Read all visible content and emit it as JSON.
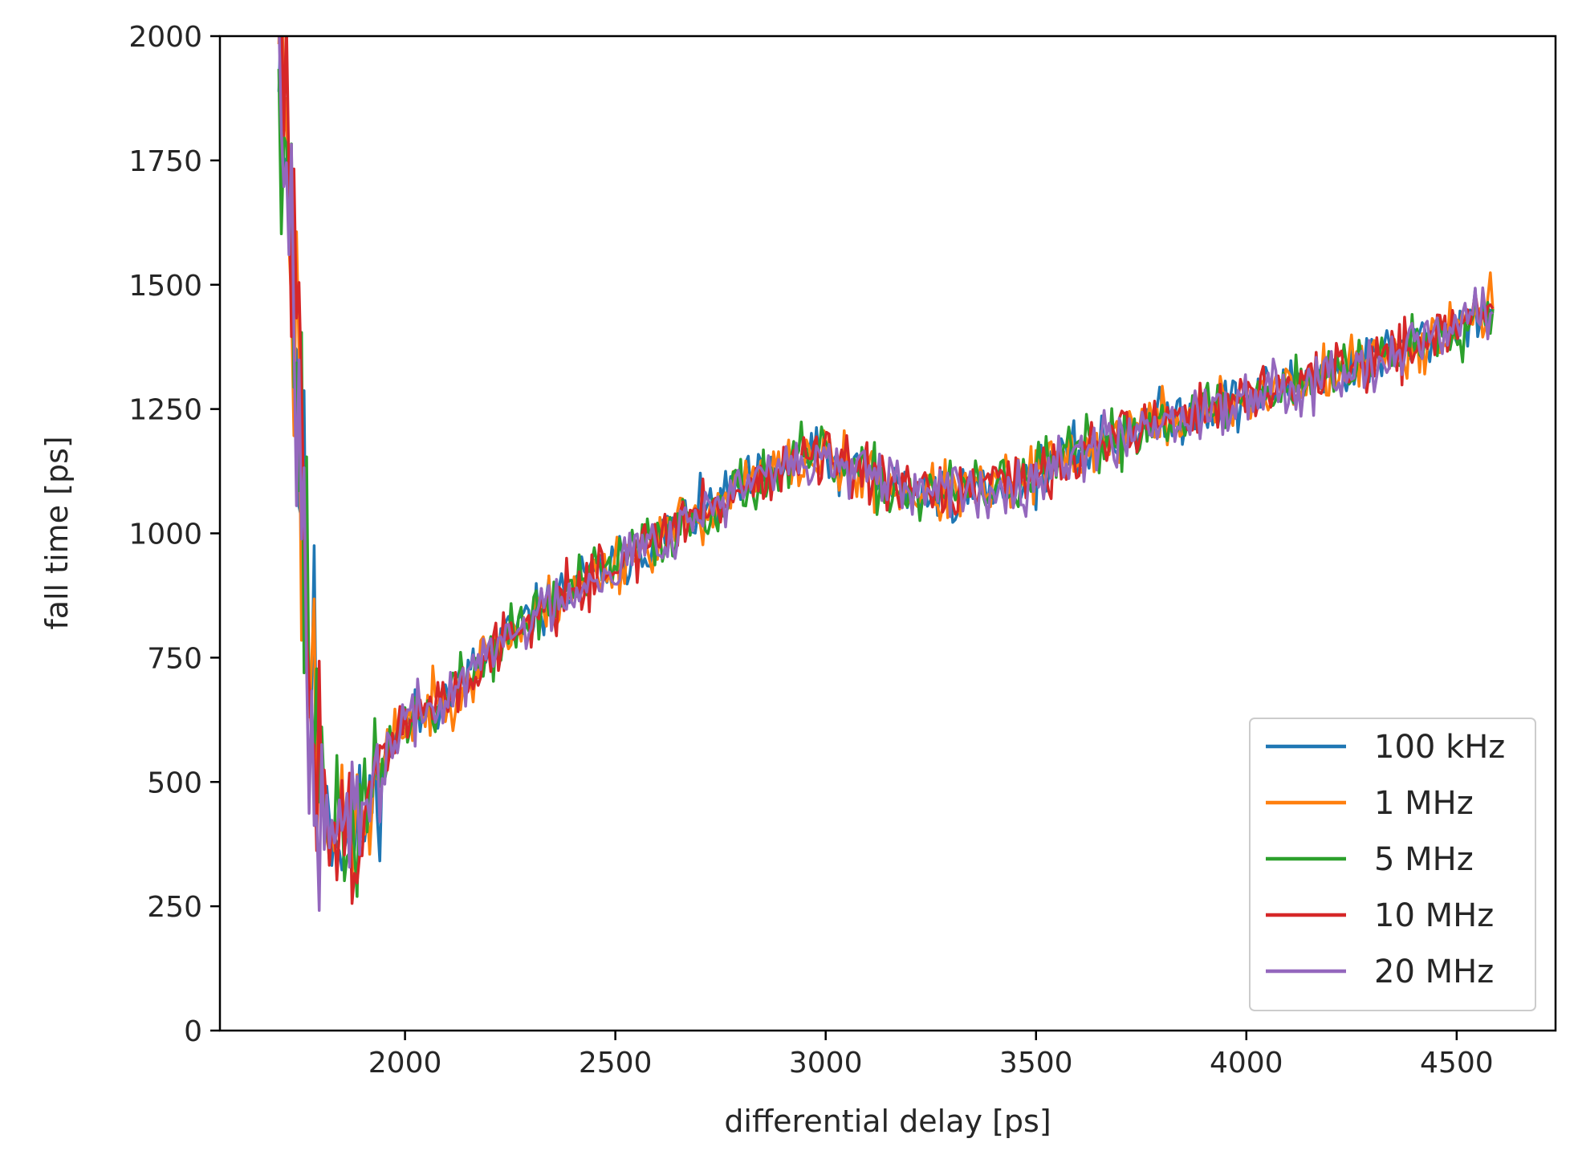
{
  "chart_data": {
    "type": "line",
    "title": "",
    "xlabel": "differential delay [ps]",
    "ylabel": "fall time [ps]",
    "xlim": [
      1560,
      4735
    ],
    "ylim": [
      0,
      2000
    ],
    "xticks": [
      2000,
      2500,
      3000,
      3500,
      4000,
      4500
    ],
    "yticks": [
      0,
      250,
      500,
      750,
      1000,
      1250,
      1500,
      1750,
      2000
    ],
    "xtick_labels": [
      "2000",
      "2500",
      "3000",
      "3500",
      "4000",
      "4500"
    ],
    "ytick_labels": [
      "0",
      "250",
      "500",
      "750",
      "1000",
      "1250",
      "1500",
      "1750",
      "2000"
    ],
    "grid": false,
    "legend_position": "lower-right",
    "x_range": [
      1700,
      4590
    ],
    "baseline": {
      "x": [
        1700,
        1720,
        1740,
        1760,
        1780,
        1800,
        1820,
        1840,
        1860,
        1880,
        1900,
        1920,
        1940,
        1960,
        1980,
        2000,
        2050,
        2100,
        2150,
        2200,
        2300,
        2400,
        2500,
        2600,
        2700,
        2800,
        2900,
        2950,
        3000,
        3050,
        3100,
        3200,
        3300,
        3400,
        3500,
        3600,
        3700,
        3800,
        3900,
        4000,
        4100,
        4200,
        4300,
        4400,
        4500,
        4590
      ],
      "y": [
        2100,
        1800,
        1400,
        950,
        700,
        540,
        440,
        400,
        390,
        400,
        420,
        460,
        510,
        560,
        600,
        620,
        640,
        670,
        710,
        760,
        830,
        890,
        940,
        990,
        1040,
        1090,
        1130,
        1150,
        1150,
        1130,
        1110,
        1080,
        1080,
        1090,
        1120,
        1160,
        1200,
        1230,
        1250,
        1270,
        1300,
        1320,
        1350,
        1380,
        1420,
        1460
      ]
    },
    "series": [
      {
        "name": "100 kHz",
        "color": "#1f77b4",
        "noise": 28,
        "seed": 11
      },
      {
        "name": "1 MHz",
        "color": "#ff7f0e",
        "noise": 30,
        "seed": 23
      },
      {
        "name": "5 MHz",
        "color": "#2ca02c",
        "noise": 30,
        "seed": 37
      },
      {
        "name": "10 MHz",
        "color": "#d62728",
        "noise": 28,
        "seed": 51
      },
      {
        "name": "20 MHz",
        "color": "#9467bd",
        "noise": 28,
        "seed": 67
      }
    ]
  }
}
